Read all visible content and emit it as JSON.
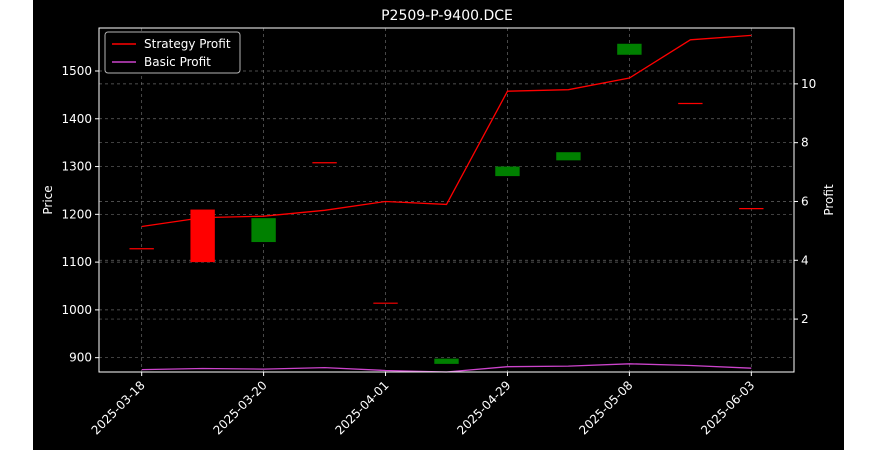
{
  "chart_data": {
    "type": "candlestick+line",
    "title": "P2509-P-9400.DCE",
    "ylabel_left": "Price",
    "ylabel_right": "Profit",
    "xlabel": "",
    "x_tick_labels": [
      "2025-03-18",
      "2025-03-20",
      "2025-04-01",
      "2025-04-29",
      "2025-05-08",
      "2025-06-03"
    ],
    "x_tick_positions": [
      0,
      2,
      4,
      6,
      8,
      10
    ],
    "xlim": [
      -0.7,
      10.7
    ],
    "ylim_left": [
      870,
      1590
    ],
    "yticks_left": [
      900,
      1000,
      1100,
      1200,
      1300,
      1400,
      1500
    ],
    "ylim_right": [
      0.2,
      11.9
    ],
    "yticks_right": [
      2,
      4,
      6,
      8,
      10
    ],
    "grid": true,
    "legend_position": "top-left",
    "colors": {
      "up": "#ff0000",
      "down": "#008000",
      "strategy": "#ff0000",
      "basic": "#cc44cc",
      "background": "#000000",
      "text": "#ffffff"
    },
    "candles": [
      {
        "i": 0,
        "open": 1128,
        "close": 1128
      },
      {
        "i": 1,
        "open": 1100,
        "close": 1210
      },
      {
        "i": 2,
        "open": 1192,
        "close": 1142
      },
      {
        "i": 3,
        "open": 1308,
        "close": 1308
      },
      {
        "i": 4,
        "open": 1014,
        "close": 1014
      },
      {
        "i": 5,
        "open": 898,
        "close": 887
      },
      {
        "i": 6,
        "open": 1300,
        "close": 1280
      },
      {
        "i": 7,
        "open": 1330,
        "close": 1313
      },
      {
        "i": 8,
        "open": 1557,
        "close": 1534
      },
      {
        "i": 9,
        "open": 1432,
        "close": 1432
      },
      {
        "i": 10,
        "open": 1212,
        "close": 1212
      }
    ],
    "series": [
      {
        "name": "Strategy Profit",
        "axis": "right",
        "values": [
          5.15,
          5.45,
          5.5,
          5.7,
          6.0,
          5.9,
          9.75,
          9.8,
          10.2,
          11.5,
          11.65
        ]
      },
      {
        "name": "Basic Profit",
        "axis": "right",
        "values": [
          0.28,
          0.32,
          0.3,
          0.35,
          0.25,
          0.2,
          0.38,
          0.4,
          0.48,
          0.42,
          0.33
        ]
      }
    ]
  }
}
